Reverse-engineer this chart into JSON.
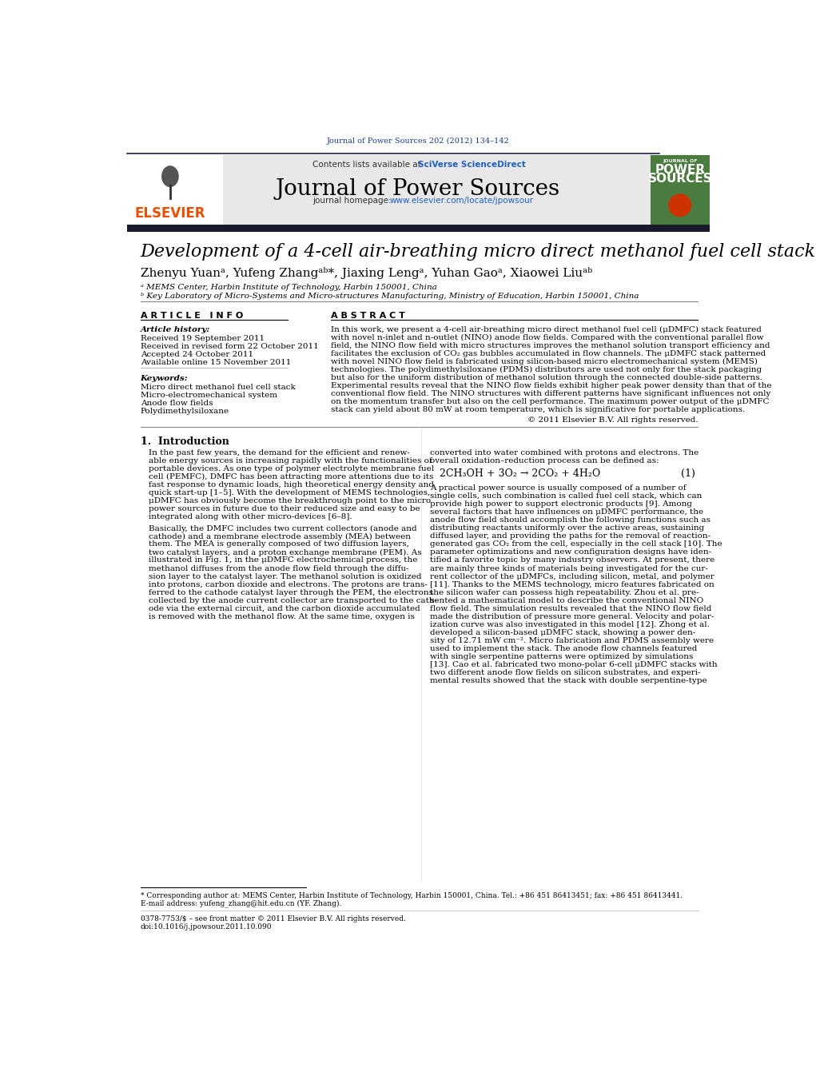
{
  "journal_citation": "Journal of Power Sources 202 (2012) 134–142",
  "journal_name": "Journal of Power Sources",
  "article_info_title": "A R T I C L E   I N F O",
  "abstract_title": "A B S T R A C T",
  "article_history_title": "Article history:",
  "received": "Received 19 September 2011",
  "received_revised": "Received in revised form 22 October 2011",
  "accepted": "Accepted 24 October 2011",
  "available_online": "Available online 15 November 2011",
  "keywords_title": "Keywords:",
  "keyword1": "Micro direct methanol fuel cell stack",
  "keyword2": "Micro-electromechanical system",
  "keyword3": "Anode flow fields",
  "keyword4": "Polydimethylsiloxane",
  "copyright": "© 2011 Elsevier B.V. All rights reserved.",
  "section1_title": "1.  Introduction",
  "equation": "2CH₃OH + 3O₂ → 2CO₂ + 4H₂O",
  "eq_number": "(1)",
  "footnote1": "* Corresponding author at: MEMS Center, Harbin Institute of Technology, Harbin 150001, China. Tel.: +86 451 86413451; fax: +86 451 86413441.",
  "footnote2": "E-mail address: yufeng_zhang@hit.edu.cn (YF. Zhang).",
  "footnote3": "0378-7753/$ – see front matter © 2011 Elsevier B.V. All rights reserved.",
  "footnote4": "doi:10.1016/j.jpowsour.2011.10.090",
  "blue_color": "#1a3a8f",
  "link_color": "#2060c0",
  "header_bg_color": "#e8e8e8",
  "journal_cover_bg": "#4a7c3f",
  "dark_bar_color": "#1a1a2e",
  "article_title": "Development of a 4-cell air-breathing micro direct methanol fuel cell stack",
  "authors_plain": "Zhenyu Yuan",
  "affiliation_a": "ᵃ MEMS Center, Harbin Institute of Technology, Harbin 150001, China",
  "affiliation_b": "ᵇ Key Laboratory of Micro-Systems and Micro-structures Manufacturing, Ministry of Education, Harbin 150001, China",
  "abstract_lines": [
    "In this work, we present a 4-cell air-breathing micro direct methanol fuel cell (μDMFC) stack featured",
    "with novel n-inlet and n-outlet (NINO) anode flow fields. Compared with the conventional parallel flow",
    "field, the NINO flow field with micro structures improves the methanol solution transport efficiency and",
    "facilitates the exclusion of CO₂ gas bubbles accumulated in flow channels. The μDMFC stack patterned",
    "with novel NINO flow field is fabricated using silicon-based micro electromechanical system (MEMS)",
    "technologies. The polydimethylsiloxane (PDMS) distributors are used not only for the stack packaging",
    "but also for the uniform distribution of methanol solution through the connected double-side patterns.",
    "Experimental results reveal that the NINO flow fields exhibit higher peak power density than that of the",
    "conventional flow field. The NINO structures with different patterns have significant influences not only",
    "on the momentum transfer but also on the cell performance. The maximum power output of the μDMFC",
    "stack can yield about 80 mW at room temperature, which is significative for portable applications."
  ],
  "intro1_lines": [
    "In the past few years, the demand for the efficient and renew-",
    "able energy sources is increasing rapidly with the functionalities of",
    "portable devices. As one type of polymer electrolyte membrane fuel",
    "cell (PEMFC), DMFC has been attracting more attentions due to its",
    "fast response to dynamic loads, high theoretical energy density and",
    "quick start-up [1–5]. With the development of MEMS technologies,",
    "μDMFC has obviously become the breakthrough point to the micro",
    "power sources in future due to their reduced size and easy to be",
    "integrated along with other micro-devices [6–8]."
  ],
  "intro2_lines": [
    "Basically, the DMFC includes two current collectors (anode and",
    "cathode) and a membrane electrode assembly (MEA) between",
    "them. The MEA is generally composed of two diffusion layers,",
    "two catalyst layers, and a proton exchange membrane (PEM). As",
    "illustrated in Fig. 1, in the μDMFC electrochemical process, the",
    "methanol diffuses from the anode flow field through the diffu-",
    "sion layer to the catalyst layer. The methanol solution is oxidized",
    "into protons, carbon dioxide and electrons. The protons are trans-",
    "ferred to the cathode catalyst layer through the PEM, the electrons",
    "collected by the anode current collector are transported to the cath-",
    "ode via the external circuit, and the carbon dioxide accumulated",
    "is removed with the methanol flow. At the same time, oxygen is"
  ],
  "right1_lines": [
    "converted into water combined with protons and electrons. The",
    "overall oxidation–reduction process can be defined as:"
  ],
  "right2_lines": [
    "A practical power source is usually composed of a number of",
    "single cells, such combination is called fuel cell stack, which can",
    "provide high power to support electronic products [9]. Among",
    "several factors that have influences on μDMFC performance, the",
    "anode flow field should accomplish the following functions such as",
    "distributing reactants uniformly over the active areas, sustaining",
    "diffused layer, and providing the paths for the removal of reaction-",
    "generated gas CO₂ from the cell, especially in the cell stack [10]. The",
    "parameter optimizations and new configuration designs have iden-",
    "tified a favorite topic by many industry observers. At present, there",
    "are mainly three kinds of materials being investigated for the cur-",
    "rent collector of the μDMFCs, including silicon, metal, and polymer",
    "[11]. Thanks to the MEMS technology, micro features fabricated on",
    "the silicon wafer can possess high repeatability. Zhou et al. pre-",
    "sented a mathematical model to describe the conventional NINO",
    "flow field. The simulation results revealed that the NINO flow field",
    "made the distribution of pressure more general. Velocity and polar-",
    "ization curve was also investigated in this model [12]. Zhong et al.",
    "developed a silicon-based μDMFC stack, showing a power den-",
    "sity of 12.71 mW cm⁻². Micro fabrication and PDMS assembly were",
    "used to implement the stack. The anode flow channels featured",
    "with single serpentine patterns were optimized by simulations",
    "[13]. Cao et al. fabricated two mono-polar 6-cell μDMFC stacks with",
    "two different anode flow fields on silicon substrates, and experi-",
    "mental results showed that the stack with double serpentine-type"
  ]
}
